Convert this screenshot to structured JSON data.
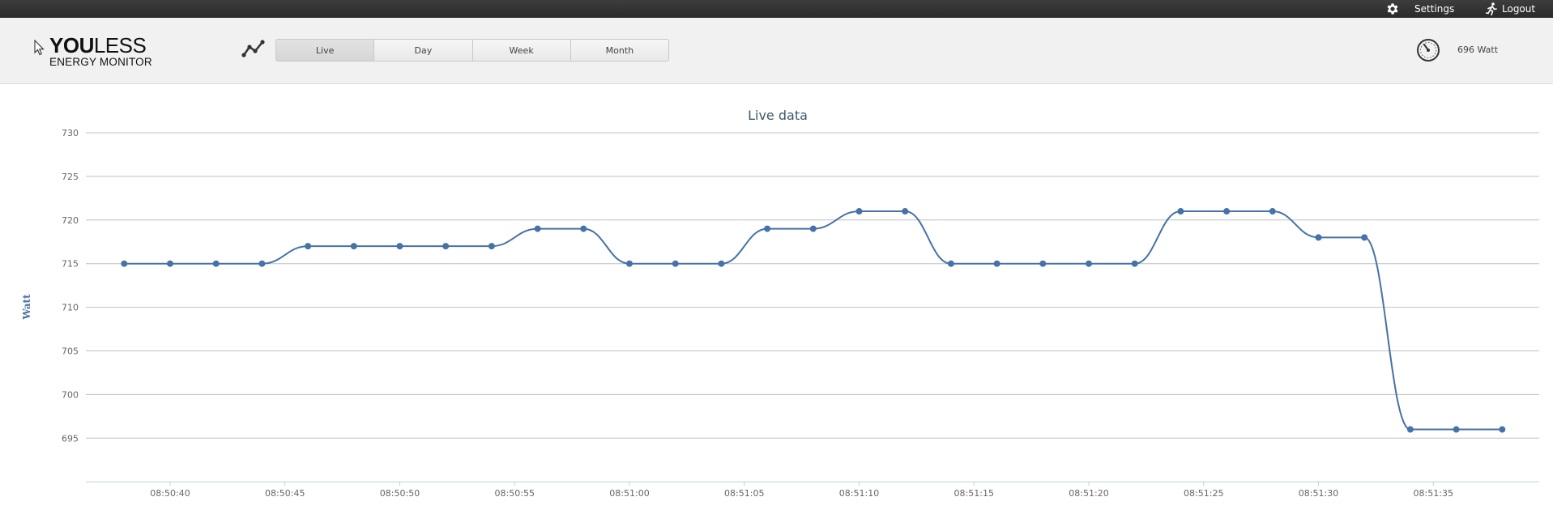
{
  "topbar": {
    "settings_label": "Settings",
    "logout_label": "Logout",
    "settings_icon": "gear-icon",
    "logout_icon": "running-man-icon"
  },
  "logo": {
    "bold": "YOU",
    "light": "LESS",
    "subtitle": "ENERGY MONITOR"
  },
  "tabs": [
    {
      "label": "Live",
      "active": true
    },
    {
      "label": "Day",
      "active": false
    },
    {
      "label": "Week",
      "active": false
    },
    {
      "label": "Month",
      "active": false
    }
  ],
  "status": {
    "current_power": "696 Watt",
    "icon": "gauge-icon"
  },
  "colors": {
    "series": "#4572a7",
    "topbar": "#333333",
    "header_bg": "#f1f1f1"
  },
  "chart_data": {
    "type": "line",
    "title": "Live data",
    "xlabel": "",
    "ylabel": "Watt",
    "ylim": [
      690,
      730
    ],
    "yticks": [
      695,
      700,
      705,
      710,
      715,
      720,
      725,
      730
    ],
    "xticks": [
      "08:50:40",
      "08:50:45",
      "08:50:50",
      "08:50:55",
      "08:51:00",
      "08:51:05",
      "08:51:10",
      "08:51:15",
      "08:51:20",
      "08:51:25",
      "08:51:30",
      "08:51:35"
    ],
    "grid": true,
    "legend": "none",
    "series": [
      {
        "x": [
          "08:50:38",
          "08:50:40",
          "08:50:42",
          "08:50:44",
          "08:50:46",
          "08:50:48",
          "08:50:50",
          "08:50:52",
          "08:50:54",
          "08:50:56",
          "08:50:58",
          "08:51:00",
          "08:51:02",
          "08:51:04",
          "08:51:06",
          "08:51:08",
          "08:51:10",
          "08:51:12",
          "08:51:14",
          "08:51:16",
          "08:51:18",
          "08:51:20",
          "08:51:22",
          "08:51:24",
          "08:51:26",
          "08:51:28",
          "08:51:30",
          "08:51:32",
          "08:51:34",
          "08:51:36",
          "08:51:38"
        ],
        "values": [
          715,
          715,
          715,
          715,
          717,
          717,
          717,
          717,
          717,
          719,
          719,
          715,
          715,
          715,
          719,
          719,
          721,
          721,
          715,
          715,
          715,
          715,
          715,
          721,
          721,
          721,
          718,
          718,
          696,
          696,
          696
        ]
      }
    ]
  }
}
